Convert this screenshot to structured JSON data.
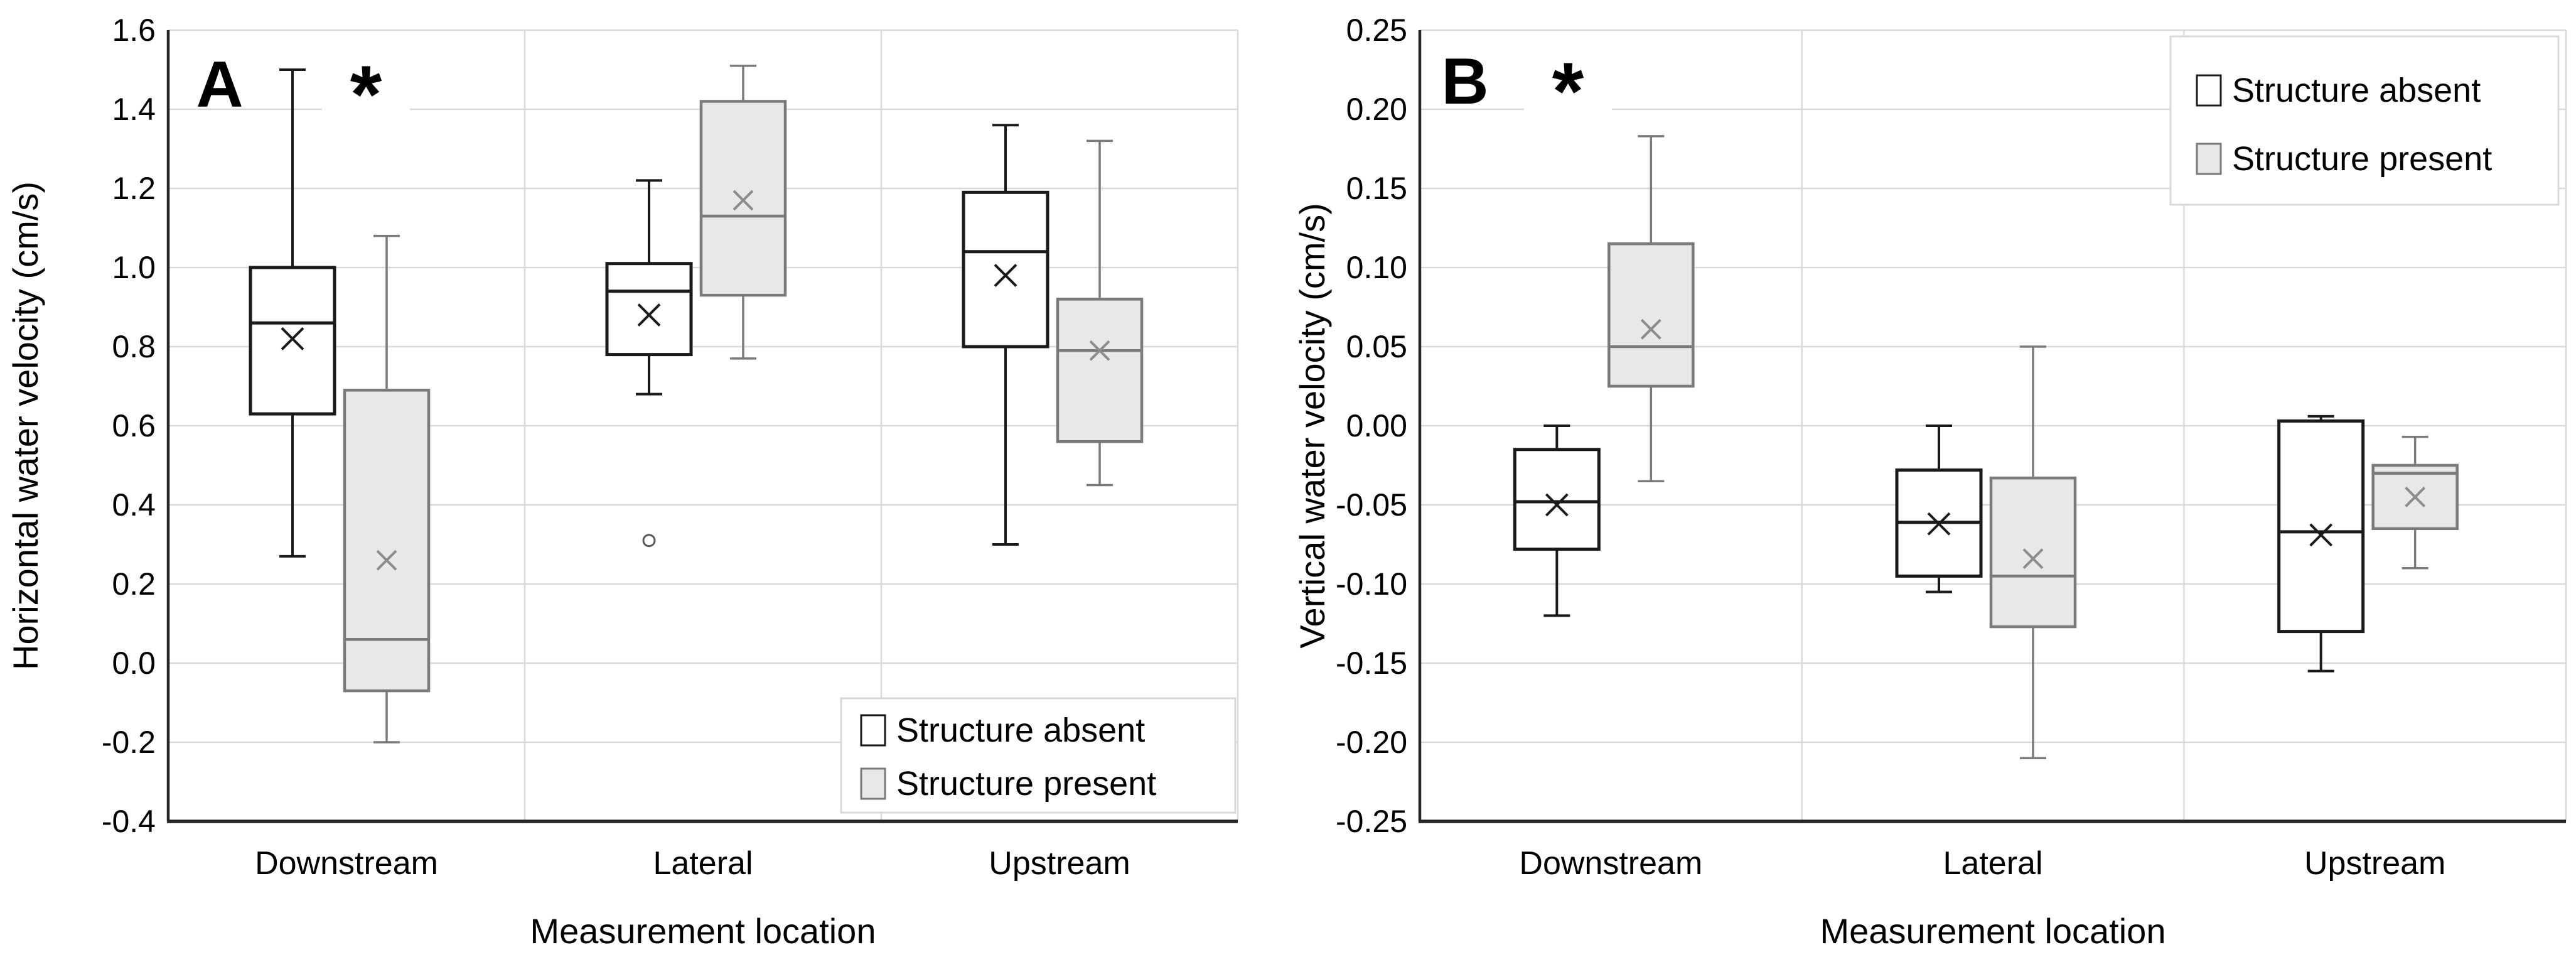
{
  "figure": {
    "background": "#ffffff",
    "colors": {
      "grid": "#d9d9d9",
      "axis": "#262626",
      "text": "#000000",
      "absent_fill": "#ffffff",
      "absent_stroke": "#1a1a1a",
      "present_fill": "#e8e8e8",
      "present_stroke": "#7a7a7a",
      "present_mean": "#8c8c8c"
    },
    "legend_labels": [
      "Structure absent",
      "Structure present"
    ]
  },
  "chart_data": [
    {
      "type": "boxplot",
      "panel_label": "A",
      "significance_marker": "*",
      "xlabel": "Measurement location",
      "ylabel": "Horizontal water velocity (cm/s)",
      "ylim": [
        -0.4,
        1.6
      ],
      "ytick_step": 0.2,
      "ytick_labels": [
        "1.6",
        "1.4",
        "1.2",
        "1.0",
        "0.8",
        "0.6",
        "0.4",
        "0.2",
        "0.0",
        "-0.2",
        "-0.4"
      ],
      "categories": [
        "Downstream",
        "Lateral",
        "Upstream"
      ],
      "grid": true,
      "legend_position": "bottom-right",
      "series": [
        {
          "name": "Structure absent",
          "boxes": [
            {
              "category": "Downstream",
              "whisker_low": 0.27,
              "q1": 0.63,
              "median": 0.86,
              "q3": 1.0,
              "whisker_high": 1.5,
              "mean": 0.82,
              "outliers": []
            },
            {
              "category": "Lateral",
              "whisker_low": 0.68,
              "q1": 0.78,
              "median": 0.94,
              "q3": 1.01,
              "whisker_high": 1.22,
              "mean": 0.88,
              "outliers": [
                0.31
              ]
            },
            {
              "category": "Upstream",
              "whisker_low": 0.3,
              "q1": 0.8,
              "median": 1.04,
              "q3": 1.19,
              "whisker_high": 1.36,
              "mean": 0.98,
              "outliers": []
            }
          ]
        },
        {
          "name": "Structure present",
          "boxes": [
            {
              "category": "Downstream",
              "whisker_low": -0.2,
              "q1": -0.07,
              "median": 0.06,
              "q3": 0.69,
              "whisker_high": 1.08,
              "mean": 0.26,
              "outliers": []
            },
            {
              "category": "Lateral",
              "whisker_low": 0.77,
              "q1": 0.93,
              "median": 1.13,
              "q3": 1.42,
              "whisker_high": 1.51,
              "mean": 1.17,
              "outliers": []
            },
            {
              "category": "Upstream",
              "whisker_low": 0.45,
              "q1": 0.56,
              "median": 0.79,
              "q3": 0.92,
              "whisker_high": 1.32,
              "mean": 0.79,
              "outliers": []
            }
          ]
        }
      ]
    },
    {
      "type": "boxplot",
      "panel_label": "B",
      "significance_marker": "*",
      "xlabel": "Measurement location",
      "ylabel": "Vertical water velocity (cm/s)",
      "ylim": [
        -0.25,
        0.25
      ],
      "ytick_step": 0.05,
      "ytick_labels": [
        "0.25",
        "0.20",
        "0.15",
        "0.10",
        "0.05",
        "0.00",
        "-0.05",
        "-0.10",
        "-0.15",
        "-0.20",
        "-0.25"
      ],
      "categories": [
        "Downstream",
        "Lateral",
        "Upstream"
      ],
      "grid": true,
      "legend_position": "top-right",
      "series": [
        {
          "name": "Structure absent",
          "boxes": [
            {
              "category": "Downstream",
              "whisker_low": -0.12,
              "q1": -0.078,
              "median": -0.048,
              "q3": -0.015,
              "whisker_high": 0.0,
              "mean": -0.05,
              "outliers": []
            },
            {
              "category": "Lateral",
              "whisker_low": -0.105,
              "q1": -0.095,
              "median": -0.061,
              "q3": -0.028,
              "whisker_high": 0.0,
              "mean": -0.062,
              "outliers": []
            },
            {
              "category": "Upstream",
              "whisker_low": -0.155,
              "q1": -0.13,
              "median": -0.067,
              "q3": 0.003,
              "whisker_high": 0.006,
              "mean": -0.069,
              "outliers": []
            }
          ]
        },
        {
          "name": "Structure present",
          "boxes": [
            {
              "category": "Downstream",
              "whisker_low": -0.035,
              "q1": 0.025,
              "median": 0.05,
              "q3": 0.115,
              "whisker_high": 0.183,
              "mean": 0.061,
              "outliers": []
            },
            {
              "category": "Lateral",
              "whisker_low": -0.21,
              "q1": -0.127,
              "median": -0.095,
              "q3": -0.033,
              "whisker_high": 0.05,
              "mean": -0.084,
              "outliers": []
            },
            {
              "category": "Upstream",
              "whisker_low": -0.09,
              "q1": -0.065,
              "median": -0.03,
              "q3": -0.025,
              "whisker_high": -0.007,
              "mean": -0.045,
              "outliers": []
            }
          ]
        }
      ]
    }
  ]
}
